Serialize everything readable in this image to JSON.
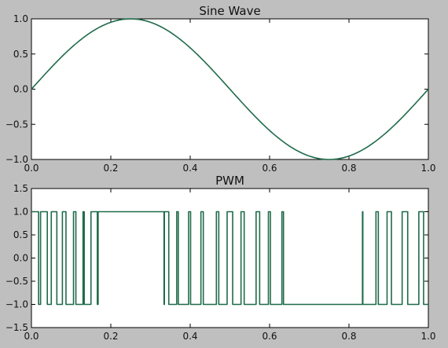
{
  "figure": {
    "background": "#bfbfbf",
    "line_color": "#1f6b4a"
  },
  "chart_data": [
    {
      "type": "line",
      "title": "Sine Wave",
      "xlabel": "",
      "ylabel": "",
      "xlim": [
        0.0,
        1.0
      ],
      "ylim": [
        -1.0,
        1.0
      ],
      "xticks": [
        "0.0",
        "0.2",
        "0.4",
        "0.6",
        "0.8",
        "1.0"
      ],
      "yticks": [
        "1.0",
        "0.5",
        "0.0",
        "−0.5",
        "−1.0"
      ],
      "grid": false,
      "series": [
        {
          "x": [
            0.0,
            0.05,
            0.1,
            0.15,
            0.2,
            0.25,
            0.3,
            0.35,
            0.4,
            0.45,
            0.5,
            0.55,
            0.6,
            0.65,
            0.7,
            0.75,
            0.8,
            0.85,
            0.9,
            0.95,
            1.0
          ],
          "y": [
            0.0,
            0.309,
            0.588,
            0.809,
            0.951,
            1.0,
            0.951,
            0.809,
            0.588,
            0.309,
            0.0,
            -0.309,
            -0.588,
            -0.809,
            -0.951,
            -1.0,
            -0.951,
            -0.809,
            -0.588,
            -0.309,
            0.0
          ]
        }
      ]
    },
    {
      "type": "line",
      "title": "PWM",
      "xlabel": "",
      "ylabel": "",
      "xlim": [
        0.0,
        1.0
      ],
      "ylim": [
        -1.5,
        1.5
      ],
      "xticks": [
        "0.0",
        "0.2",
        "0.4",
        "0.6",
        "0.8",
        "1.0"
      ],
      "yticks": [
        "1.5",
        "1.0",
        "0.5",
        "0.0",
        "−0.5",
        "−1.0",
        "−1.5"
      ],
      "grid": false,
      "series": [
        {
          "x": [
            0.0,
            0.018,
            0.018,
            0.023,
            0.023,
            0.04,
            0.04,
            0.05,
            0.05,
            0.064,
            0.064,
            0.078,
            0.078,
            0.087,
            0.087,
            0.106,
            0.106,
            0.112,
            0.112,
            0.13,
            0.13,
            0.133,
            0.133,
            0.15,
            0.15,
            0.166,
            0.166,
            0.168,
            0.168,
            0.334,
            0.334,
            0.335,
            0.335,
            0.346,
            0.346,
            0.366,
            0.366,
            0.37,
            0.37,
            0.396,
            0.396,
            0.401,
            0.401,
            0.427,
            0.427,
            0.433,
            0.433,
            0.466,
            0.466,
            0.472,
            0.472,
            0.493,
            0.493,
            0.507,
            0.507,
            0.528,
            0.528,
            0.536,
            0.536,
            0.566,
            0.566,
            0.575,
            0.575,
            0.597,
            0.597,
            0.602,
            0.602,
            0.631,
            0.631,
            0.635,
            0.635,
            0.834,
            0.834,
            0.835,
            0.835,
            0.868,
            0.868,
            0.874,
            0.874,
            0.896,
            0.896,
            0.907,
            0.907,
            0.934,
            0.934,
            0.948,
            0.948,
            0.976,
            0.976,
            0.988,
            0.988,
            1.0
          ],
          "y": [
            1,
            1,
            -1,
            -1,
            1,
            1,
            -1,
            -1,
            1,
            1,
            -1,
            -1,
            1,
            1,
            -1,
            -1,
            1,
            1,
            -1,
            -1,
            1,
            1,
            -1,
            -1,
            1,
            1,
            -1,
            -1,
            1,
            1,
            -1,
            -1,
            1,
            1,
            -1,
            -1,
            1,
            1,
            -1,
            -1,
            1,
            1,
            -1,
            -1,
            1,
            1,
            -1,
            -1,
            1,
            1,
            -1,
            -1,
            1,
            1,
            -1,
            -1,
            1,
            1,
            -1,
            -1,
            1,
            1,
            -1,
            -1,
            1,
            1,
            -1,
            -1,
            1,
            1,
            -1,
            -1,
            1,
            1,
            -1,
            -1,
            1,
            1,
            -1,
            -1,
            1,
            1,
            -1,
            -1,
            1,
            1,
            -1,
            -1,
            1,
            1,
            -1,
            -1
          ]
        }
      ]
    }
  ]
}
